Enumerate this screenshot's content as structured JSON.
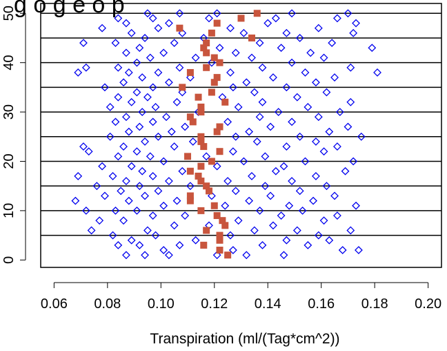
{
  "chart_data": {
    "type": "scatter",
    "title": "g   o   g   e   o   p",
    "xlabel": "Transpiration (ml/(Tag*cm^2))",
    "ylabel": "",
    "xlim": [
      0.055,
      0.205
    ],
    "ylim": [
      -1.5,
      52
    ],
    "x_ticks": [
      "0.06",
      "0.08",
      "0.10",
      "0.12",
      "0.14",
      "0.16",
      "0.18",
      "0.20"
    ],
    "y_ticks": [
      "0",
      "10",
      "20",
      "30",
      "40",
      "50"
    ],
    "x_tick_values": [
      0.06,
      0.08,
      0.1,
      0.12,
      0.14,
      0.16,
      0.18,
      0.2
    ],
    "y_tick_values": [
      0,
      10,
      20,
      30,
      40,
      50
    ],
    "h_lines": [
      5,
      10,
      15,
      20,
      25,
      30,
      35,
      40,
      45,
      50
    ],
    "grid": false,
    "colors": {
      "points": "#0000ee",
      "means": "#c8553d",
      "lines": "#000000"
    },
    "mean_points": [
      {
        "x": 0.125,
        "y": 1
      },
      {
        "x": 0.122,
        "y": 2
      },
      {
        "x": 0.116,
        "y": 3
      },
      {
        "x": 0.122,
        "y": 4
      },
      {
        "x": 0.122,
        "y": 5
      },
      {
        "x": 0.117,
        "y": 6
      },
      {
        "x": 0.124,
        "y": 7
      },
      {
        "x": 0.123,
        "y": 8
      },
      {
        "x": 0.121,
        "y": 9
      },
      {
        "x": 0.115,
        "y": 10
      },
      {
        "x": 0.12,
        "y": 11
      },
      {
        "x": 0.111,
        "y": 12
      },
      {
        "x": 0.111,
        "y": 13
      },
      {
        "x": 0.118,
        "y": 14
      },
      {
        "x": 0.117,
        "y": 15
      },
      {
        "x": 0.115,
        "y": 16
      },
      {
        "x": 0.114,
        "y": 17
      },
      {
        "x": 0.111,
        "y": 18
      },
      {
        "x": 0.115,
        "y": 19
      },
      {
        "x": 0.119,
        "y": 20
      },
      {
        "x": 0.11,
        "y": 21
      },
      {
        "x": 0.122,
        "y": 22
      },
      {
        "x": 0.116,
        "y": 23
      },
      {
        "x": 0.115,
        "y": 24
      },
      {
        "x": 0.115,
        "y": 25
      },
      {
        "x": 0.121,
        "y": 26
      },
      {
        "x": 0.122,
        "y": 27
      },
      {
        "x": 0.112,
        "y": 28
      },
      {
        "x": 0.111,
        "y": 29
      },
      {
        "x": 0.115,
        "y": 30
      },
      {
        "x": 0.115,
        "y": 31
      },
      {
        "x": 0.124,
        "y": 32
      },
      {
        "x": 0.114,
        "y": 33
      },
      {
        "x": 0.119,
        "y": 34
      },
      {
        "x": 0.108,
        "y": 35
      },
      {
        "x": 0.12,
        "y": 36
      },
      {
        "x": 0.121,
        "y": 37
      },
      {
        "x": 0.111,
        "y": 38
      },
      {
        "x": 0.117,
        "y": 39
      },
      {
        "x": 0.122,
        "y": 40
      },
      {
        "x": 0.12,
        "y": 41
      },
      {
        "x": 0.117,
        "y": 42
      },
      {
        "x": 0.116,
        "y": 43
      },
      {
        "x": 0.117,
        "y": 44
      },
      {
        "x": 0.134,
        "y": 45
      },
      {
        "x": 0.119,
        "y": 46
      },
      {
        "x": 0.107,
        "y": 47
      },
      {
        "x": 0.121,
        "y": 48
      },
      {
        "x": 0.13,
        "y": 49
      },
      {
        "x": 0.136,
        "y": 50
      }
    ],
    "scatter_points": [
      {
        "x": 0.103,
        "y": 1
      },
      {
        "x": 0.094,
        "y": 1
      },
      {
        "x": 0.087,
        "y": 1
      },
      {
        "x": 0.121,
        "y": 1
      },
      {
        "x": 0.132,
        "y": 1
      },
      {
        "x": 0.146,
        "y": 1
      },
      {
        "x": 0.168,
        "y": 2
      },
      {
        "x": 0.174,
        "y": 2
      },
      {
        "x": 0.101,
        "y": 2
      },
      {
        "x": 0.127,
        "y": 2
      },
      {
        "x": 0.084,
        "y": 3
      },
      {
        "x": 0.092,
        "y": 3
      },
      {
        "x": 0.107,
        "y": 3
      },
      {
        "x": 0.138,
        "y": 3
      },
      {
        "x": 0.155,
        "y": 3
      },
      {
        "x": 0.163,
        "y": 4
      },
      {
        "x": 0.089,
        "y": 4
      },
      {
        "x": 0.113,
        "y": 4
      },
      {
        "x": 0.147,
        "y": 4
      },
      {
        "x": 0.098,
        "y": 5
      },
      {
        "x": 0.082,
        "y": 5
      },
      {
        "x": 0.126,
        "y": 5
      },
      {
        "x": 0.159,
        "y": 5
      },
      {
        "x": 0.171,
        "y": 6
      },
      {
        "x": 0.074,
        "y": 6
      },
      {
        "x": 0.095,
        "y": 6
      },
      {
        "x": 0.135,
        "y": 6
      },
      {
        "x": 0.151,
        "y": 6
      },
      {
        "x": 0.105,
        "y": 7
      },
      {
        "x": 0.118,
        "y": 7
      },
      {
        "x": 0.142,
        "y": 7
      },
      {
        "x": 0.086,
        "y": 8
      },
      {
        "x": 0.077,
        "y": 8
      },
      {
        "x": 0.129,
        "y": 8
      },
      {
        "x": 0.161,
        "y": 8
      },
      {
        "x": 0.097,
        "y": 9
      },
      {
        "x": 0.109,
        "y": 9
      },
      {
        "x": 0.145,
        "y": 9
      },
      {
        "x": 0.166,
        "y": 9
      },
      {
        "x": 0.072,
        "y": 10
      },
      {
        "x": 0.083,
        "y": 10
      },
      {
        "x": 0.091,
        "y": 10
      },
      {
        "x": 0.137,
        "y": 10
      },
      {
        "x": 0.153,
        "y": 10
      },
      {
        "x": 0.173,
        "y": 11
      },
      {
        "x": 0.101,
        "y": 11
      },
      {
        "x": 0.124,
        "y": 11
      },
      {
        "x": 0.148,
        "y": 11
      },
      {
        "x": 0.068,
        "y": 12
      },
      {
        "x": 0.088,
        "y": 12
      },
      {
        "x": 0.106,
        "y": 12
      },
      {
        "x": 0.133,
        "y": 12
      },
      {
        "x": 0.157,
        "y": 12
      },
      {
        "x": 0.079,
        "y": 13
      },
      {
        "x": 0.094,
        "y": 13
      },
      {
        "x": 0.119,
        "y": 13
      },
      {
        "x": 0.141,
        "y": 13
      },
      {
        "x": 0.165,
        "y": 13
      },
      {
        "x": 0.085,
        "y": 14
      },
      {
        "x": 0.099,
        "y": 14
      },
      {
        "x": 0.128,
        "y": 14
      },
      {
        "x": 0.152,
        "y": 14
      },
      {
        "x": 0.076,
        "y": 15
      },
      {
        "x": 0.092,
        "y": 15
      },
      {
        "x": 0.111,
        "y": 15
      },
      {
        "x": 0.139,
        "y": 15
      },
      {
        "x": 0.162,
        "y": 15
      },
      {
        "x": 0.087,
        "y": 16
      },
      {
        "x": 0.103,
        "y": 16
      },
      {
        "x": 0.125,
        "y": 16
      },
      {
        "x": 0.149,
        "y": 16
      },
      {
        "x": 0.069,
        "y": 17
      },
      {
        "x": 0.082,
        "y": 17
      },
      {
        "x": 0.097,
        "y": 17
      },
      {
        "x": 0.134,
        "y": 17
      },
      {
        "x": 0.158,
        "y": 17
      },
      {
        "x": 0.093,
        "y": 18
      },
      {
        "x": 0.108,
        "y": 18
      },
      {
        "x": 0.143,
        "y": 18
      },
      {
        "x": 0.169,
        "y": 18
      },
      {
        "x": 0.078,
        "y": 19
      },
      {
        "x": 0.089,
        "y": 19
      },
      {
        "x": 0.121,
        "y": 19
      },
      {
        "x": 0.146,
        "y": 19
      },
      {
        "x": 0.172,
        "y": 20
      },
      {
        "x": 0.101,
        "y": 20
      },
      {
        "x": 0.131,
        "y": 20
      },
      {
        "x": 0.154,
        "y": 20
      },
      {
        "x": 0.084,
        "y": 21
      },
      {
        "x": 0.096,
        "y": 21
      },
      {
        "x": 0.117,
        "y": 21
      },
      {
        "x": 0.139,
        "y": 21
      },
      {
        "x": 0.073,
        "y": 22
      },
      {
        "x": 0.091,
        "y": 22
      },
      {
        "x": 0.127,
        "y": 22
      },
      {
        "x": 0.161,
        "y": 22
      },
      {
        "x": 0.071,
        "y": 23
      },
      {
        "x": 0.086,
        "y": 23
      },
      {
        "x": 0.105,
        "y": 23
      },
      {
        "x": 0.147,
        "y": 23
      },
      {
        "x": 0.166,
        "y": 23
      },
      {
        "x": 0.094,
        "y": 24
      },
      {
        "x": 0.112,
        "y": 24
      },
      {
        "x": 0.136,
        "y": 24
      },
      {
        "x": 0.158,
        "y": 24
      },
      {
        "x": 0.081,
        "y": 25
      },
      {
        "x": 0.099,
        "y": 25
      },
      {
        "x": 0.128,
        "y": 25
      },
      {
        "x": 0.152,
        "y": 25
      },
      {
        "x": 0.175,
        "y": 25
      },
      {
        "x": 0.088,
        "y": 26
      },
      {
        "x": 0.104,
        "y": 26
      },
      {
        "x": 0.133,
        "y": 26
      },
      {
        "x": 0.163,
        "y": 26
      },
      {
        "x": 0.092,
        "y": 27
      },
      {
        "x": 0.109,
        "y": 27
      },
      {
        "x": 0.141,
        "y": 27
      },
      {
        "x": 0.17,
        "y": 27
      },
      {
        "x": 0.083,
        "y": 28
      },
      {
        "x": 0.097,
        "y": 28
      },
      {
        "x": 0.125,
        "y": 28
      },
      {
        "x": 0.149,
        "y": 28
      },
      {
        "x": 0.087,
        "y": 29
      },
      {
        "x": 0.102,
        "y": 29
      },
      {
        "x": 0.137,
        "y": 29
      },
      {
        "x": 0.159,
        "y": 29
      },
      {
        "x": 0.093,
        "y": 30
      },
      {
        "x": 0.114,
        "y": 30
      },
      {
        "x": 0.144,
        "y": 30
      },
      {
        "x": 0.167,
        "y": 30
      },
      {
        "x": 0.081,
        "y": 31
      },
      {
        "x": 0.098,
        "y": 31
      },
      {
        "x": 0.129,
        "y": 31
      },
      {
        "x": 0.155,
        "y": 31
      },
      {
        "x": 0.089,
        "y": 32
      },
      {
        "x": 0.106,
        "y": 32
      },
      {
        "x": 0.138,
        "y": 32
      },
      {
        "x": 0.171,
        "y": 32
      },
      {
        "x": 0.084,
        "y": 33
      },
      {
        "x": 0.095,
        "y": 33
      },
      {
        "x": 0.123,
        "y": 33
      },
      {
        "x": 0.151,
        "y": 33
      },
      {
        "x": 0.091,
        "y": 34
      },
      {
        "x": 0.108,
        "y": 34
      },
      {
        "x": 0.135,
        "y": 34
      },
      {
        "x": 0.162,
        "y": 34
      },
      {
        "x": 0.079,
        "y": 35
      },
      {
        "x": 0.097,
        "y": 35
      },
      {
        "x": 0.127,
        "y": 35
      },
      {
        "x": 0.147,
        "y": 35
      },
      {
        "x": 0.086,
        "y": 36
      },
      {
        "x": 0.103,
        "y": 36
      },
      {
        "x": 0.132,
        "y": 36
      },
      {
        "x": 0.158,
        "y": 36
      },
      {
        "x": 0.093,
        "y": 37
      },
      {
        "x": 0.111,
        "y": 37
      },
      {
        "x": 0.142,
        "y": 37
      },
      {
        "x": 0.165,
        "y": 37
      },
      {
        "x": 0.069,
        "y": 38
      },
      {
        "x": 0.088,
        "y": 38
      },
      {
        "x": 0.099,
        "y": 38
      },
      {
        "x": 0.126,
        "y": 38
      },
      {
        "x": 0.154,
        "y": 38
      },
      {
        "x": 0.181,
        "y": 38
      },
      {
        "x": 0.072,
        "y": 39
      },
      {
        "x": 0.084,
        "y": 39
      },
      {
        "x": 0.107,
        "y": 39
      },
      {
        "x": 0.138,
        "y": 39
      },
      {
        "x": 0.171,
        "y": 39
      },
      {
        "x": 0.091,
        "y": 40
      },
      {
        "x": 0.119,
        "y": 40
      },
      {
        "x": 0.149,
        "y": 40
      },
      {
        "x": 0.096,
        "y": 41
      },
      {
        "x": 0.113,
        "y": 41
      },
      {
        "x": 0.134,
        "y": 41
      },
      {
        "x": 0.161,
        "y": 41
      },
      {
        "x": 0.087,
        "y": 42
      },
      {
        "x": 0.101,
        "y": 42
      },
      {
        "x": 0.128,
        "y": 42
      },
      {
        "x": 0.156,
        "y": 42
      },
      {
        "x": 0.179,
        "y": 43
      },
      {
        "x": 0.092,
        "y": 43
      },
      {
        "x": 0.122,
        "y": 43
      },
      {
        "x": 0.145,
        "y": 43
      },
      {
        "x": 0.071,
        "y": 44
      },
      {
        "x": 0.083,
        "y": 44
      },
      {
        "x": 0.105,
        "y": 44
      },
      {
        "x": 0.137,
        "y": 44
      },
      {
        "x": 0.164,
        "y": 44
      },
      {
        "x": 0.094,
        "y": 45
      },
      {
        "x": 0.116,
        "y": 45
      },
      {
        "x": 0.152,
        "y": 45
      },
      {
        "x": 0.172,
        "y": 46
      },
      {
        "x": 0.089,
        "y": 46
      },
      {
        "x": 0.108,
        "y": 46
      },
      {
        "x": 0.131,
        "y": 46
      },
      {
        "x": 0.147,
        "y": 46
      },
      {
        "x": 0.078,
        "y": 47
      },
      {
        "x": 0.099,
        "y": 47
      },
      {
        "x": 0.126,
        "y": 47
      },
      {
        "x": 0.159,
        "y": 47
      },
      {
        "x": 0.087,
        "y": 48
      },
      {
        "x": 0.103,
        "y": 48
      },
      {
        "x": 0.14,
        "y": 48
      },
      {
        "x": 0.173,
        "y": 48
      },
      {
        "x": 0.084,
        "y": 49
      },
      {
        "x": 0.097,
        "y": 49
      },
      {
        "x": 0.118,
        "y": 49
      },
      {
        "x": 0.143,
        "y": 49
      },
      {
        "x": 0.166,
        "y": 49
      },
      {
        "x": 0.107,
        "y": 50
      },
      {
        "x": 0.121,
        "y": 50
      },
      {
        "x": 0.149,
        "y": 50
      },
      {
        "x": 0.17,
        "y": 50
      },
      {
        "x": 0.095,
        "y": 50
      }
    ]
  }
}
